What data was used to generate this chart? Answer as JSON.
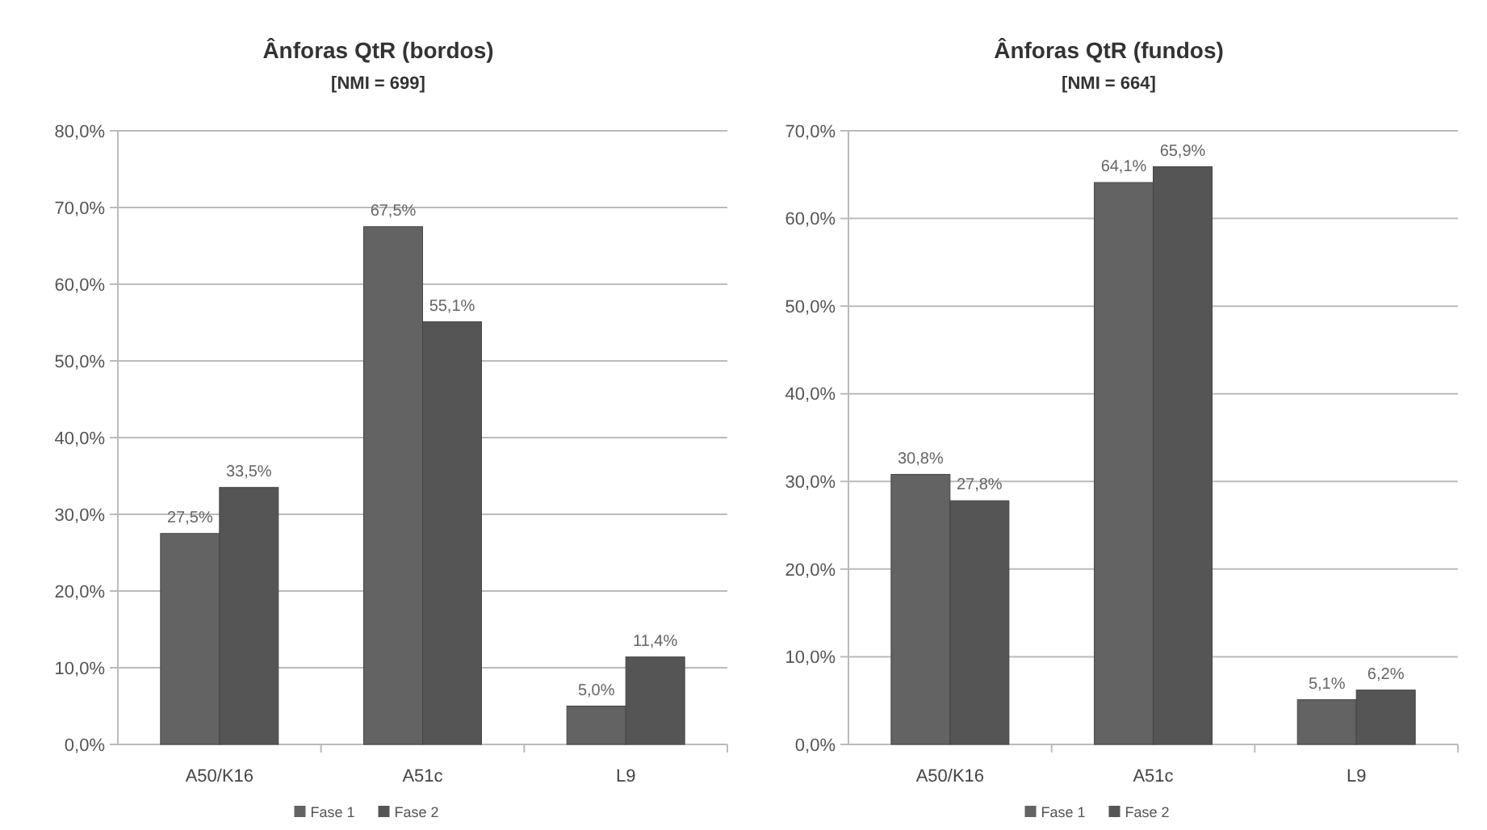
{
  "chart_data": [
    {
      "type": "bar",
      "title": "Ânforas QtR (bordos)",
      "subtitle": "[NMI = 699]",
      "categories": [
        "A50/K16",
        "A51c",
        "L9"
      ],
      "series": [
        {
          "name": "Fase 1",
          "color": "#636363",
          "values": [
            27.5,
            67.5,
            5.0
          ],
          "value_labels": [
            "27,5%",
            "67,5%",
            "5,0%"
          ]
        },
        {
          "name": "Fase 2",
          "color": "#555555",
          "values": [
            33.5,
            55.1,
            11.4
          ],
          "value_labels": [
            "33,5%",
            "55,1%",
            "11,4%"
          ]
        }
      ],
      "ylim": [
        0,
        80
      ],
      "yticks": [
        {
          "value": 0,
          "label": "0,0%"
        },
        {
          "value": 10,
          "label": "10,0%"
        },
        {
          "value": 20,
          "label": "20,0%"
        },
        {
          "value": 30,
          "label": "30,0%"
        },
        {
          "value": 40,
          "label": "40,0%"
        },
        {
          "value": 50,
          "label": "50,0%"
        },
        {
          "value": 60,
          "label": "60,0%"
        },
        {
          "value": 70,
          "label": "70,0%"
        },
        {
          "value": 80,
          "label": "80,0%"
        }
      ],
      "grid": "y",
      "legend": "bottom"
    },
    {
      "type": "bar",
      "title": "Ânforas QtR (fundos)",
      "subtitle": "[NMI = 664]",
      "categories": [
        "A50/K16",
        "A51c",
        "L9"
      ],
      "series": [
        {
          "name": "Fase 1",
          "color": "#636363",
          "values": [
            30.8,
            64.1,
            5.1
          ],
          "value_labels": [
            "30,8%",
            "64,1%",
            "5,1%"
          ]
        },
        {
          "name": "Fase 2",
          "color": "#555555",
          "values": [
            27.8,
            65.9,
            6.2
          ],
          "value_labels": [
            "27,8%",
            "65,9%",
            "6,2%"
          ]
        }
      ],
      "ylim": [
        0,
        70
      ],
      "yticks": [
        {
          "value": 0,
          "label": "0,0%"
        },
        {
          "value": 10,
          "label": "10,0%"
        },
        {
          "value": 20,
          "label": "20,0%"
        },
        {
          "value": 30,
          "label": "30,0%"
        },
        {
          "value": 40,
          "label": "40,0%"
        },
        {
          "value": 50,
          "label": "50,0%"
        },
        {
          "value": 60,
          "label": "60,0%"
        },
        {
          "value": 70,
          "label": "70,0%"
        }
      ],
      "grid": "y",
      "legend": "bottom"
    }
  ]
}
